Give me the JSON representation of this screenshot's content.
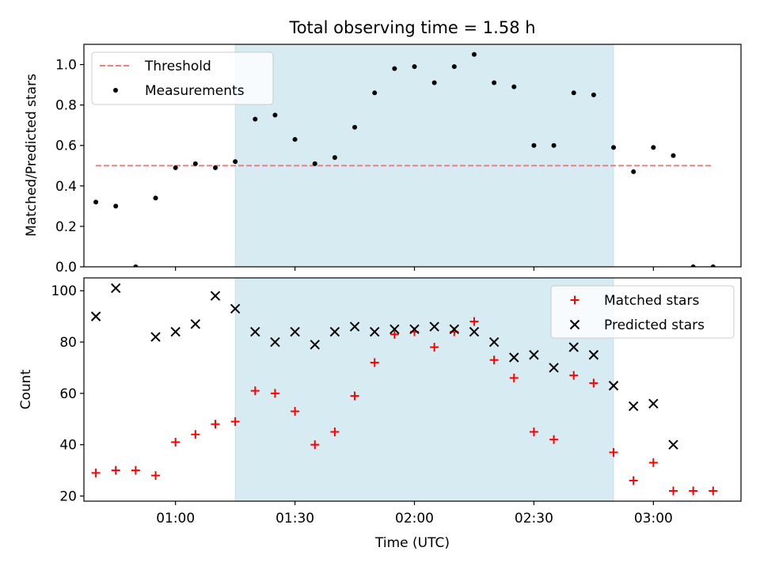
{
  "title": "Total observing time = 1.58 h",
  "colors": {
    "highlight": "#add8e6",
    "threshold": "#f08080",
    "measurement": "#000000",
    "matched": "#ff0000",
    "predicted": "#000000"
  },
  "chart_data": [
    {
      "type": "scatter",
      "ylabel": "Matched/Predicted stars",
      "ylim": [
        0,
        1.1
      ],
      "yticks": [
        "0.0",
        "0.2",
        "0.4",
        "0.6",
        "0.8",
        "1.0"
      ],
      "xlim": [
        "00:37",
        "03:22"
      ],
      "highlight_range": [
        "01:15",
        "02:50"
      ],
      "threshold": {
        "name": "Threshold",
        "y": 0.5,
        "x": [
          "00:40",
          "03:15"
        ]
      },
      "legend": {
        "position": "upper-left",
        "entries": [
          "Threshold",
          "Measurements"
        ]
      },
      "series": [
        {
          "name": "Measurements",
          "x": [
            "00:40",
            "00:45",
            "00:50",
            "00:55",
            "01:00",
            "01:05",
            "01:10",
            "01:15",
            "01:20",
            "01:25",
            "01:30",
            "01:35",
            "01:40",
            "01:45",
            "01:50",
            "01:55",
            "02:00",
            "02:05",
            "02:10",
            "02:15",
            "02:20",
            "02:25",
            "02:30",
            "02:35",
            "02:40",
            "02:45",
            "02:50",
            "02:55",
            "03:00",
            "03:05",
            "03:10",
            "03:15"
          ],
          "values": [
            0.32,
            0.3,
            0.0,
            0.34,
            0.49,
            0.51,
            0.49,
            0.52,
            0.73,
            0.75,
            0.63,
            0.51,
            0.54,
            0.69,
            0.86,
            0.98,
            0.99,
            0.91,
            0.99,
            1.05,
            0.91,
            0.89,
            0.6,
            0.6,
            0.86,
            0.85,
            0.59,
            0.47,
            0.59,
            0.55,
            0.0,
            0.0
          ]
        }
      ]
    },
    {
      "type": "scatter",
      "xlabel": "Time (UTC)",
      "ylabel": "Count",
      "ylim": [
        18,
        105
      ],
      "yticks": [
        "20",
        "40",
        "60",
        "80",
        "100"
      ],
      "xticks": [
        "01:00",
        "01:30",
        "02:00",
        "02:30",
        "03:00"
      ],
      "xlim": [
        "00:37",
        "03:22"
      ],
      "highlight_range": [
        "01:15",
        "02:50"
      ],
      "legend": {
        "position": "upper-right",
        "entries": [
          "Matched stars",
          "Predicted stars"
        ]
      },
      "series": [
        {
          "name": "Matched stars",
          "x": [
            "00:40",
            "00:45",
            "00:50",
            "00:55",
            "01:00",
            "01:05",
            "01:10",
            "01:15",
            "01:20",
            "01:25",
            "01:30",
            "01:35",
            "01:40",
            "01:45",
            "01:50",
            "01:55",
            "02:00",
            "02:05",
            "02:10",
            "02:15",
            "02:20",
            "02:25",
            "02:30",
            "02:35",
            "02:40",
            "02:45",
            "02:50",
            "02:55",
            "03:00",
            "03:05",
            "03:10",
            "03:15"
          ],
          "values": [
            29,
            30,
            30,
            28,
            41,
            44,
            48,
            49,
            61,
            60,
            53,
            40,
            45,
            59,
            72,
            83,
            84,
            78,
            84,
            88,
            73,
            66,
            45,
            42,
            67,
            64,
            37,
            26,
            33,
            22,
            22,
            22
          ]
        },
        {
          "name": "Predicted stars",
          "x": [
            "00:40",
            "00:45",
            "00:55",
            "01:00",
            "01:05",
            "01:10",
            "01:15",
            "01:20",
            "01:25",
            "01:30",
            "01:35",
            "01:40",
            "01:45",
            "01:50",
            "01:55",
            "02:00",
            "02:05",
            "02:10",
            "02:15",
            "02:20",
            "02:25",
            "02:30",
            "02:35",
            "02:40",
            "02:45",
            "02:50",
            "02:55",
            "03:00",
            "03:05"
          ],
          "values": [
            90,
            101,
            82,
            84,
            87,
            98,
            93,
            84,
            80,
            84,
            79,
            84,
            86,
            84,
            85,
            85,
            86,
            85,
            84,
            80,
            74,
            75,
            70,
            78,
            75,
            63,
            55,
            56,
            40
          ]
        }
      ]
    }
  ]
}
